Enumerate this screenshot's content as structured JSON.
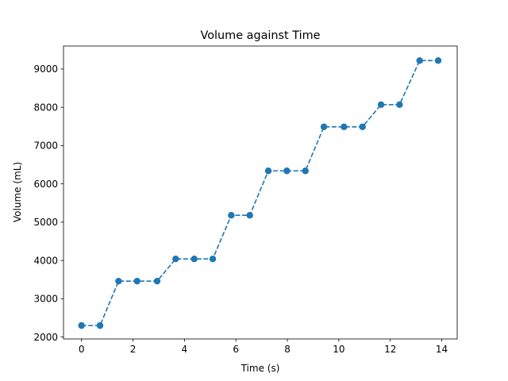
{
  "chart_data": {
    "type": "line",
    "title": "Volume against Time",
    "xlabel": "Time (s)",
    "ylabel": "Volume (mL)",
    "xlim": [
      -0.7,
      14.6
    ],
    "ylim": [
      1950,
      9600
    ],
    "xticks": [
      0,
      2,
      4,
      6,
      8,
      10,
      12,
      14
    ],
    "yticks": [
      2000,
      3000,
      4000,
      5000,
      6000,
      7000,
      8000,
      9000
    ],
    "grid": false,
    "legend": false,
    "line_style": "dashed",
    "marker": "circle",
    "color": "#1f77b4",
    "series": [
      {
        "x": [
          0,
          0.72,
          1.44,
          2.16,
          2.94,
          3.66,
          4.38,
          5.1,
          5.82,
          6.54,
          7.26,
          7.98,
          8.7,
          9.42,
          10.2,
          10.92,
          11.64,
          12.36,
          13.14,
          13.86
        ],
        "y": [
          2300,
          2300,
          3460,
          3460,
          3460,
          4040,
          4040,
          4040,
          5180,
          5180,
          6340,
          6340,
          6340,
          7490,
          7490,
          7490,
          8070,
          8070,
          9220,
          9220
        ]
      }
    ]
  }
}
